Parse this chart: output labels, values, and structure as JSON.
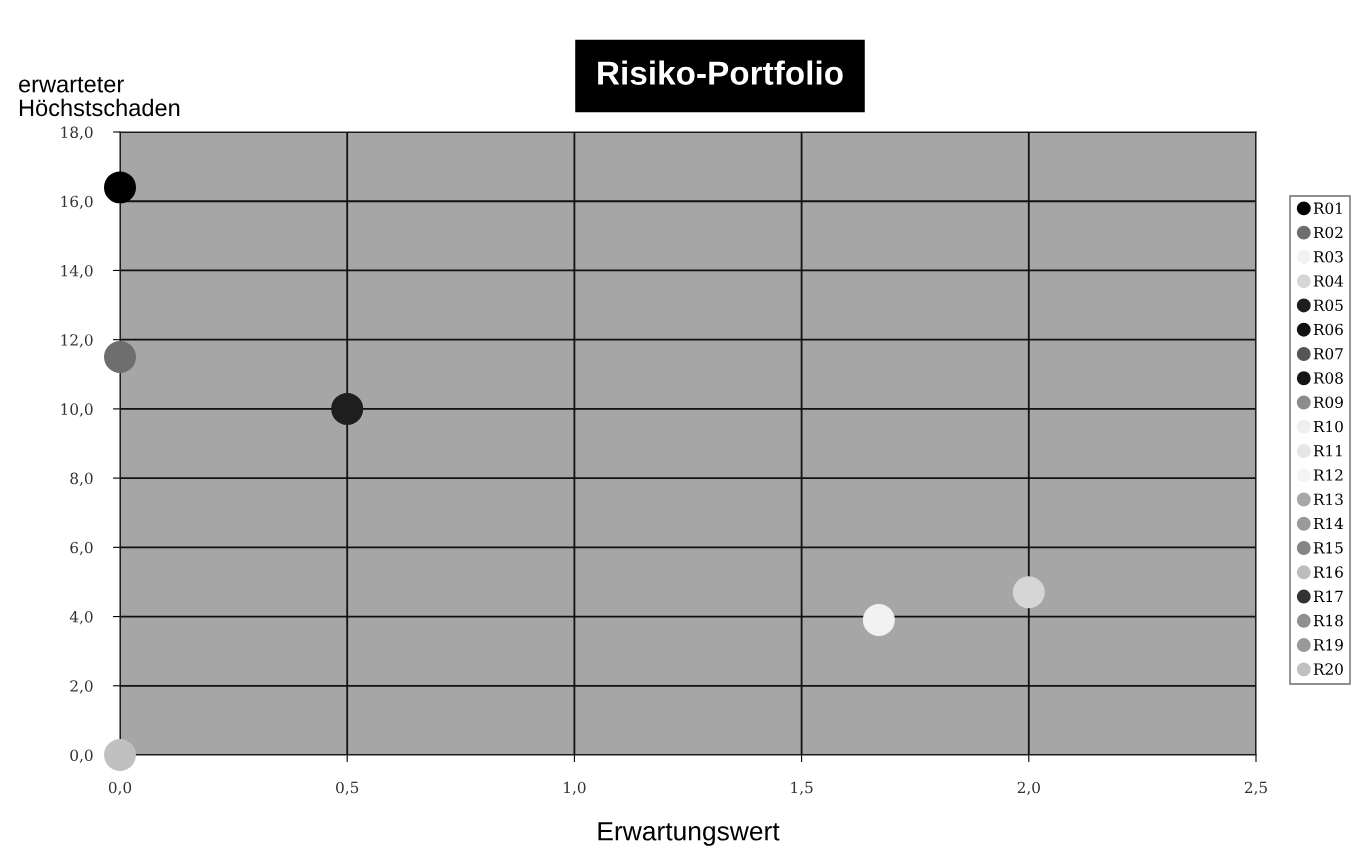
{
  "chart_data": {
    "type": "scatter",
    "title": "Risiko-Portfolio",
    "xlabel": "Erwartungswert",
    "ylabel": "erwarteter\nHöchstschaden",
    "xlim": [
      0,
      2.5
    ],
    "ylim": [
      0,
      18
    ],
    "xticks": [
      {
        "value": 0,
        "label": "0,0"
      },
      {
        "value": 0.5,
        "label": "0,5"
      },
      {
        "value": 1,
        "label": "1,0"
      },
      {
        "value": 1.5,
        "label": "1,5"
      },
      {
        "value": 2,
        "label": "2,0"
      },
      {
        "value": 2.5,
        "label": "2,5"
      }
    ],
    "yticks": [
      {
        "value": 0,
        "label": "0,0"
      },
      {
        "value": 2,
        "label": "2,0"
      },
      {
        "value": 4,
        "label": "4,0"
      },
      {
        "value": 6,
        "label": "6,0"
      },
      {
        "value": 8,
        "label": "8,0"
      },
      {
        "value": 10,
        "label": "10,0"
      },
      {
        "value": 12,
        "label": "12,0"
      },
      {
        "value": 14,
        "label": "14,0"
      },
      {
        "value": 16,
        "label": "16,0"
      },
      {
        "value": 18,
        "label": "18,0"
      }
    ],
    "grid": true,
    "legend": "right",
    "marker": "circle",
    "series": [
      {
        "name": "R01",
        "color": "#000000",
        "x": [
          0
        ],
        "values": [
          16.4
        ]
      },
      {
        "name": "R02",
        "color": "#6e6e6e",
        "x": [
          0
        ],
        "values": [
          11.5
        ]
      },
      {
        "name": "R03",
        "color": "#f2f2f2",
        "x": [
          1.67
        ],
        "values": [
          3.9
        ]
      },
      {
        "name": "R04",
        "color": "#d6d6d6",
        "x": [
          2.0
        ],
        "values": [
          4.7
        ]
      },
      {
        "name": "R05",
        "color": "#1e1e1e",
        "x": [
          0.5
        ],
        "values": [
          10.0
        ]
      },
      {
        "name": "R06",
        "color": "#111111",
        "x": [
          null
        ],
        "values": [
          null
        ]
      },
      {
        "name": "R07",
        "color": "#555555",
        "x": [
          null
        ],
        "values": [
          null
        ]
      },
      {
        "name": "R08",
        "color": "#151515",
        "x": [
          null
        ],
        "values": [
          null
        ]
      },
      {
        "name": "R09",
        "color": "#8c8c8c",
        "x": [
          null
        ],
        "values": [
          null
        ]
      },
      {
        "name": "R10",
        "color": "#efefef",
        "x": [
          null
        ],
        "values": [
          null
        ]
      },
      {
        "name": "R11",
        "color": "#e6e6e6",
        "x": [
          null
        ],
        "values": [
          null
        ]
      },
      {
        "name": "R12",
        "color": "#f4f4f4",
        "x": [
          null
        ],
        "values": [
          null
        ]
      },
      {
        "name": "R13",
        "color": "#a8a8a8",
        "x": [
          null
        ],
        "values": [
          null
        ]
      },
      {
        "name": "R14",
        "color": "#9a9a9a",
        "x": [
          null
        ],
        "values": [
          null
        ]
      },
      {
        "name": "R15",
        "color": "#858585",
        "x": [
          null
        ],
        "values": [
          null
        ]
      },
      {
        "name": "R16",
        "color": "#bdbdbd",
        "x": [
          null
        ],
        "values": [
          null
        ]
      },
      {
        "name": "R17",
        "color": "#333333",
        "x": [
          null
        ],
        "values": [
          null
        ]
      },
      {
        "name": "R18",
        "color": "#909090",
        "x": [
          null
        ],
        "values": [
          null
        ]
      },
      {
        "name": "R19",
        "color": "#999999",
        "x": [
          null
        ],
        "values": [
          null
        ]
      },
      {
        "name": "R20",
        "color": "#c0c0c0",
        "x": [
          0
        ],
        "values": [
          0
        ]
      }
    ]
  }
}
